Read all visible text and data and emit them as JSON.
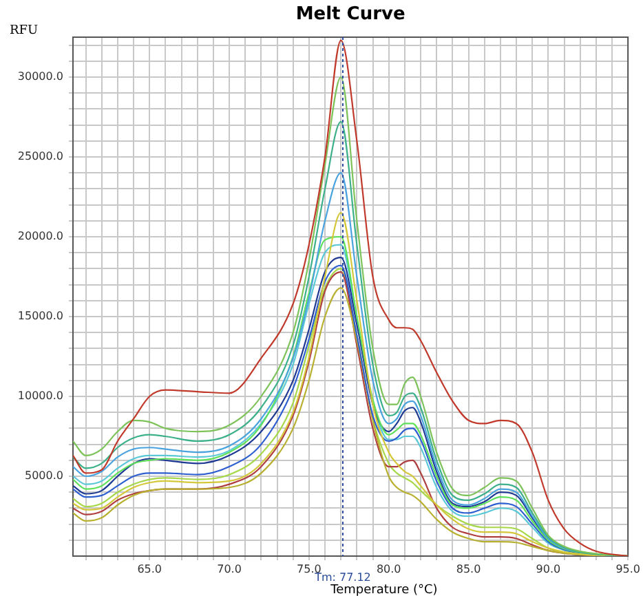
{
  "chart_data": {
    "type": "line",
    "title": "Melt Curve",
    "xlabel": "Temperature (°C)",
    "ylabel": "RFU",
    "x": [
      60.2,
      61,
      62,
      63,
      64,
      65,
      66,
      68,
      70,
      72,
      74,
      75,
      76,
      77,
      78,
      79,
      80,
      80.5,
      81,
      81.5,
      82,
      83,
      84,
      85,
      86,
      87,
      88,
      89,
      90,
      91,
      92,
      93,
      95
    ],
    "xlim": [
      60.2,
      95
    ],
    "xticks": [
      {
        "value": 61,
        "label": null
      },
      {
        "value": 62,
        "label": null
      },
      {
        "value": 63,
        "label": null
      },
      {
        "value": 64,
        "label": null
      },
      {
        "value": 65,
        "label": "65.0"
      },
      {
        "value": 66,
        "label": null
      },
      {
        "value": 67,
        "label": null
      },
      {
        "value": 68,
        "label": null
      },
      {
        "value": 69,
        "label": null
      },
      {
        "value": 70,
        "label": "70.0"
      },
      {
        "value": 71,
        "label": null
      },
      {
        "value": 72,
        "label": null
      },
      {
        "value": 73,
        "label": null
      },
      {
        "value": 74,
        "label": null
      },
      {
        "value": 75,
        "label": "75.0"
      },
      {
        "value": 76,
        "label": null
      },
      {
        "value": 77,
        "label": null
      },
      {
        "value": 78,
        "label": null
      },
      {
        "value": 79,
        "label": null
      },
      {
        "value": 80,
        "label": "80.0"
      },
      {
        "value": 81,
        "label": null
      },
      {
        "value": 82,
        "label": null
      },
      {
        "value": 83,
        "label": null
      },
      {
        "value": 84,
        "label": null
      },
      {
        "value": 85,
        "label": "85.0"
      },
      {
        "value": 86,
        "label": null
      },
      {
        "value": 87,
        "label": null
      },
      {
        "value": 88,
        "label": null
      },
      {
        "value": 89,
        "label": null
      },
      {
        "value": 90,
        "label": "90.0"
      },
      {
        "value": 91,
        "label": null
      },
      {
        "value": 92,
        "label": null
      },
      {
        "value": 93,
        "label": null
      },
      {
        "value": 94,
        "label": null
      },
      {
        "value": 95,
        "label": "95.0"
      }
    ],
    "ylim": [
      0,
      32500
    ],
    "yticks": [
      {
        "value": 1000,
        "label": null
      },
      {
        "value": 2000,
        "label": null
      },
      {
        "value": 3000,
        "label": null
      },
      {
        "value": 4000,
        "label": null
      },
      {
        "value": 5000,
        "label": "5000.0"
      },
      {
        "value": 6000,
        "label": null
      },
      {
        "value": 7000,
        "label": null
      },
      {
        "value": 8000,
        "label": null
      },
      {
        "value": 9000,
        "label": null
      },
      {
        "value": 10000,
        "label": "10000.0"
      },
      {
        "value": 11000,
        "label": null
      },
      {
        "value": 12000,
        "label": null
      },
      {
        "value": 13000,
        "label": null
      },
      {
        "value": 14000,
        "label": null
      },
      {
        "value": 15000,
        "label": "15000.0"
      },
      {
        "value": 16000,
        "label": null
      },
      {
        "value": 17000,
        "label": null
      },
      {
        "value": 18000,
        "label": null
      },
      {
        "value": 19000,
        "label": null
      },
      {
        "value": 20000,
        "label": "20000.0"
      },
      {
        "value": 21000,
        "label": null
      },
      {
        "value": 22000,
        "label": null
      },
      {
        "value": 23000,
        "label": null
      },
      {
        "value": 24000,
        "label": null
      },
      {
        "value": 25000,
        "label": "25000.0"
      },
      {
        "value": 26000,
        "label": null
      },
      {
        "value": 27000,
        "label": null
      },
      {
        "value": 28000,
        "label": null
      },
      {
        "value": 29000,
        "label": null
      },
      {
        "value": 30000,
        "label": "30000.0"
      },
      {
        "value": 31000,
        "label": null
      },
      {
        "value": 32000,
        "label": null
      }
    ],
    "grid": true,
    "legend": false,
    "marker": "none",
    "line_style": "solid",
    "ref_lines": [
      {
        "axis": "x",
        "value": 77.12,
        "label": "Tm: 77.12",
        "color": "#2a4a9a",
        "line_style": "dotted"
      }
    ],
    "series": [
      {
        "color": "#c0392b",
        "values": [
          6300,
          5200,
          5400,
          7200,
          8600,
          10000,
          10400,
          10300,
          10200,
          12400,
          15800,
          19500,
          25000,
          32300,
          26000,
          17500,
          14800,
          14300,
          14300,
          14200,
          13500,
          11500,
          9700,
          8500,
          8300,
          8500,
          8300,
          6500,
          3500,
          1700,
          800,
          300,
          0
        ]
      },
      {
        "color": "#7dc35a",
        "values": [
          7200,
          6300,
          6700,
          7800,
          8500,
          8400,
          8000,
          7800,
          8200,
          10000,
          14000,
          18500,
          24500,
          30000,
          21000,
          13000,
          9500,
          9500,
          10800,
          11200,
          10000,
          6500,
          4200,
          3800,
          4300,
          4900,
          4700,
          3000,
          1300,
          600,
          300,
          150,
          0
        ]
      },
      {
        "color": "#3cb08a",
        "values": [
          6200,
          5500,
          5800,
          6800,
          7400,
          7600,
          7500,
          7200,
          7600,
          9300,
          13200,
          17500,
          23000,
          27200,
          19500,
          12000,
          8800,
          9000,
          10000,
          10200,
          9300,
          6000,
          3800,
          3500,
          3900,
          4500,
          4300,
          2700,
          1200,
          550,
          250,
          120,
          0
        ]
      },
      {
        "color": "#4aa3df",
        "values": [
          5600,
          5000,
          5300,
          6200,
          6700,
          6800,
          6700,
          6500,
          6900,
          8600,
          12400,
          16200,
          21000,
          24000,
          17500,
          11000,
          8300,
          8600,
          9500,
          9700,
          8800,
          5600,
          3500,
          3200,
          3600,
          4200,
          4000,
          2500,
          1100,
          500,
          250,
          120,
          0
        ]
      },
      {
        "color": "#d4c83a",
        "values": [
          3300,
          2900,
          3000,
          3700,
          4300,
          4600,
          4700,
          4600,
          4700,
          5800,
          9000,
          12500,
          17500,
          21500,
          16000,
          9500,
          6500,
          5800,
          5300,
          5000,
          4400,
          3200,
          2300,
          1700,
          1500,
          1500,
          1400,
          900,
          500,
          250,
          120,
          60,
          0
        ]
      },
      {
        "color": "#5fe05a",
        "values": [
          4800,
          4200,
          4400,
          5200,
          5800,
          6000,
          6100,
          6000,
          6500,
          8200,
          12500,
          16500,
          19800,
          20000,
          15000,
          9800,
          7600,
          7900,
          8300,
          8300,
          7600,
          5000,
          3200,
          3000,
          3300,
          3700,
          3500,
          2200,
          1000,
          450,
          220,
          100,
          0
        ]
      },
      {
        "color": "#1f3a93",
        "values": [
          4400,
          3900,
          4100,
          5000,
          5800,
          6100,
          6000,
          5800,
          6300,
          7800,
          11000,
          14200,
          17800,
          18700,
          14500,
          9500,
          7800,
          8300,
          9100,
          9300,
          8400,
          5300,
          3300,
          3100,
          3400,
          4000,
          3800,
          2400,
          1000,
          450,
          220,
          100,
          0
        ]
      },
      {
        "color": "#2e5fd0",
        "values": [
          4200,
          3700,
          3800,
          4400,
          5000,
          5200,
          5200,
          5100,
          5600,
          7000,
          10500,
          13600,
          17200,
          18200,
          13800,
          8800,
          7200,
          7400,
          7900,
          8000,
          7300,
          4700,
          3000,
          2700,
          3000,
          3300,
          3100,
          2000,
          900,
          400,
          200,
          100,
          0
        ]
      },
      {
        "color": "#b8b030",
        "values": [
          2700,
          2200,
          2400,
          3200,
          3800,
          4100,
          4200,
          4200,
          4300,
          5200,
          8000,
          11000,
          15000,
          16800,
          13500,
          8500,
          5000,
          4300,
          4000,
          3800,
          3400,
          2300,
          1500,
          1100,
          900,
          900,
          850,
          600,
          350,
          180,
          90,
          40,
          0
        ]
      },
      {
        "color": "#b04040",
        "values": [
          3000,
          2600,
          2800,
          3500,
          3900,
          4100,
          4200,
          4200,
          4500,
          5600,
          8800,
          12200,
          16600,
          17800,
          13200,
          8000,
          5600,
          5600,
          5900,
          6000,
          5200,
          3000,
          1800,
          1400,
          1200,
          1200,
          1100,
          700,
          350,
          180,
          90,
          40,
          0
        ]
      },
      {
        "color": "#5bc8d8",
        "values": [
          5000,
          4500,
          4700,
          5500,
          6100,
          6300,
          6300,
          6200,
          6600,
          8300,
          12000,
          15800,
          19000,
          19500,
          14800,
          9600,
          7300,
          7300,
          7500,
          7500,
          6800,
          4300,
          2800,
          2500,
          2700,
          3000,
          2800,
          1800,
          800,
          380,
          190,
          90,
          0
        ]
      },
      {
        "color": "#a6d84a",
        "values": [
          3600,
          3100,
          3300,
          4000,
          4500,
          4800,
          4900,
          4800,
          5100,
          6400,
          9600,
          13200,
          16800,
          18000,
          13800,
          8600,
          5800,
          5200,
          4900,
          4600,
          4100,
          3200,
          2500,
          2000,
          1800,
          1800,
          1700,
          1100,
          500,
          250,
          120,
          60,
          0
        ]
      }
    ]
  }
}
